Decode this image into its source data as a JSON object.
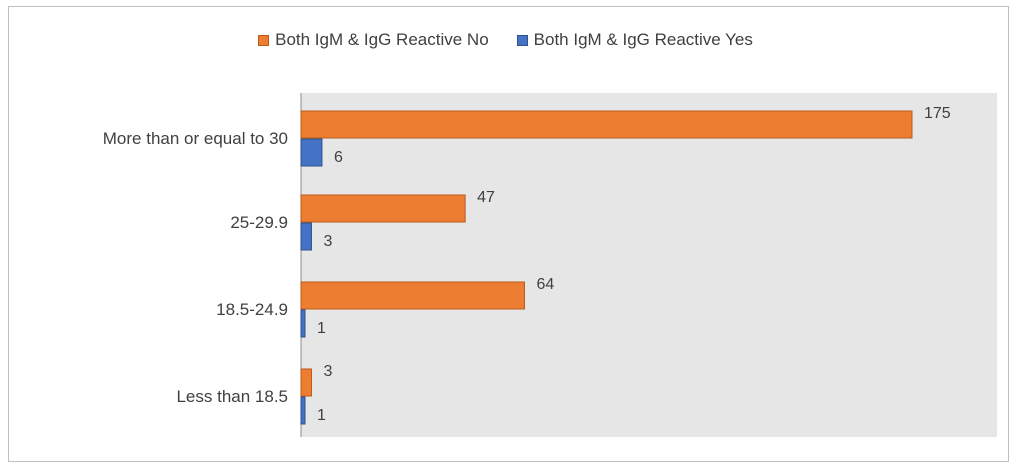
{
  "chart_data": {
    "type": "bar",
    "orientation": "horizontal",
    "categories": [
      "More than or equal to 30",
      "25-29.9",
      "18.5-24.9",
      "Less than 18.5"
    ],
    "series": [
      {
        "name": "Both IgM & IgG Reactive No",
        "color": "#ED7D31",
        "border": "#B85A1A",
        "values": [
          175,
          47,
          64,
          3
        ]
      },
      {
        "name": "Both IgM & IgG Reactive Yes",
        "color": "#4472C4",
        "border": "#2F528F",
        "values": [
          6,
          3,
          1,
          1
        ]
      }
    ],
    "xlim": [
      0,
      200
    ],
    "legend_position": "top",
    "plot_background": "#E7E6E6",
    "grid": false,
    "title": "",
    "xlabel": "",
    "ylabel": ""
  }
}
